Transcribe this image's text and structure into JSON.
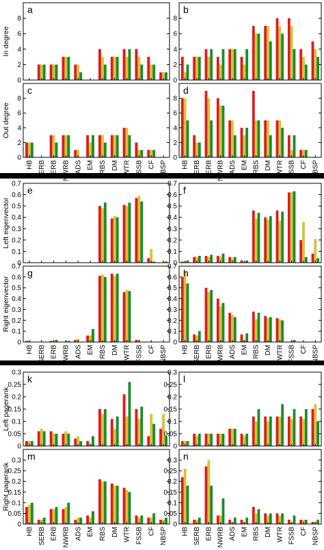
{
  "colors": {
    "series": [
      "#e01b1b",
      "#d4c43a",
      "#1e8a2c"
    ],
    "separator": "#000000"
  },
  "categories": [
    "HB",
    "SERB",
    "ERB",
    "NWRB",
    "ADS",
    "EM",
    "RBS",
    "DM",
    "WTR",
    "FSSB",
    "CF",
    "NBSP"
  ],
  "chart_data": [
    {
      "type": "bar",
      "panel": "a",
      "ylabel": "In degree",
      "ylim": [
        0,
        10
      ],
      "yticks": [
        0,
        2,
        4,
        6,
        8
      ],
      "series": [
        {
          "values": [
            0,
            2,
            2,
            3,
            2,
            0,
            4,
            3,
            4,
            4,
            3,
            1
          ]
        },
        {
          "values": [
            0,
            2,
            2,
            3,
            2,
            0,
            3,
            3,
            3,
            3,
            2,
            1
          ]
        },
        {
          "values": [
            0,
            2,
            2,
            3,
            1,
            0,
            2,
            3,
            4,
            2,
            2,
            1
          ]
        }
      ]
    },
    {
      "type": "bar",
      "panel": "b",
      "ylabel": "",
      "ylim": [
        0,
        10
      ],
      "yticks": [
        0,
        2,
        4,
        6,
        8
      ],
      "series": [
        {
          "values": [
            3,
            3,
            4,
            3,
            4,
            3,
            7,
            7,
            8,
            8,
            4,
            5
          ]
        },
        {
          "values": [
            1,
            3,
            3,
            2,
            4,
            2,
            6,
            7,
            7,
            7,
            3,
            4
          ]
        },
        {
          "values": [
            2,
            3,
            4,
            4,
            4,
            4,
            6,
            5,
            6,
            4,
            2,
            3
          ]
        }
      ]
    },
    {
      "type": "bar",
      "panel": "c",
      "ylabel": "Out degree",
      "ylim": [
        0,
        10
      ],
      "yticks": [
        0,
        2,
        4,
        6,
        8
      ],
      "series": [
        {
          "values": [
            2,
            0,
            3,
            3,
            1,
            3,
            3,
            3,
            4,
            2,
            1,
            0
          ]
        },
        {
          "values": [
            2,
            0,
            3,
            3,
            1,
            2,
            3,
            3,
            4,
            1,
            1,
            0
          ]
        },
        {
          "values": [
            2,
            0,
            2,
            3,
            0,
            3,
            2,
            3,
            3,
            1,
            1,
            0
          ]
        }
      ]
    },
    {
      "type": "bar",
      "panel": "d",
      "ylabel": "",
      "ylim": [
        0,
        10
      ],
      "yticks": [
        0,
        2,
        4,
        6,
        8
      ],
      "series": [
        {
          "values": [
            8,
            3,
            9,
            8,
            5,
            4,
            9,
            5,
            5,
            3,
            1,
            0
          ]
        },
        {
          "values": [
            8,
            2,
            8,
            7,
            5,
            3,
            5,
            5,
            5,
            1,
            1,
            0
          ]
        },
        {
          "values": [
            5,
            2,
            5,
            7,
            3,
            4,
            5,
            3,
            4,
            3,
            1,
            0
          ]
        }
      ]
    },
    {
      "type": "bar",
      "panel": "e",
      "ylabel": "Left eigenvector",
      "ylim": [
        0,
        0.7
      ],
      "yticks": [
        0,
        0.1,
        0.2,
        0.3,
        0.4,
        0.5,
        0.6,
        0.7
      ],
      "series": [
        {
          "values": [
            0,
            0,
            0,
            0,
            0,
            0,
            0.5,
            0.39,
            0.51,
            0.57,
            0.04,
            0
          ]
        },
        {
          "values": [
            0,
            0,
            0,
            0,
            0,
            0,
            0.48,
            0.41,
            0.5,
            0.59,
            0.12,
            0.01
          ]
        },
        {
          "values": [
            0,
            0,
            0,
            0,
            0,
            0,
            0.53,
            0.4,
            0.53,
            0.54,
            0.01,
            0.01
          ]
        }
      ]
    },
    {
      "type": "bar",
      "panel": "f",
      "ylabel": "",
      "ylim": [
        0,
        0.7
      ],
      "yticks": [
        0,
        0.1,
        0.2,
        0.3,
        0.4,
        0.5,
        0.6,
        0.7
      ],
      "series": [
        {
          "values": [
            0.01,
            0.05,
            0.06,
            0.06,
            0.05,
            0.02,
            0.46,
            0.4,
            0.46,
            0.62,
            0.2,
            0.08
          ]
        },
        {
          "values": [
            0.01,
            0.05,
            0.05,
            0.05,
            0.04,
            0.01,
            0.39,
            0.38,
            0.37,
            0.62,
            0.36,
            0.21
          ]
        },
        {
          "values": [
            0.02,
            0.06,
            0.07,
            0.08,
            0.05,
            0.02,
            0.44,
            0.41,
            0.45,
            0.63,
            0.05,
            0.04
          ]
        }
      ]
    },
    {
      "type": "bar",
      "panel": "g",
      "ylabel": "Right eigenvector",
      "ylim": [
        0,
        0.7
      ],
      "yticks": [
        0,
        0.1,
        0.2,
        0.3,
        0.4,
        0.5,
        0.6,
        0.7
      ],
      "series": [
        {
          "values": [
            0.01,
            0,
            0.01,
            0,
            0.02,
            0.06,
            0.61,
            0.63,
            0.46,
            0.02,
            0,
            0
          ]
        },
        {
          "values": [
            0.01,
            0,
            0.01,
            0.01,
            0.03,
            0.06,
            0.62,
            0.61,
            0.48,
            0.02,
            0,
            0
          ]
        },
        {
          "values": [
            0,
            0,
            0.02,
            0.01,
            0,
            0.12,
            0.6,
            0.63,
            0.47,
            0,
            0,
            0
          ]
        }
      ]
    },
    {
      "type": "bar",
      "panel": "h",
      "ylabel": "",
      "ylim": [
        0,
        0.7
      ],
      "yticks": [
        0,
        0.1,
        0.2,
        0.3,
        0.4,
        0.5,
        0.6,
        0.7
      ],
      "series": [
        {
          "values": [
            0.6,
            0.07,
            0.5,
            0.4,
            0.27,
            0.07,
            0.28,
            0.24,
            0.22,
            0,
            0,
            0
          ]
        },
        {
          "values": [
            0.65,
            0.06,
            0.46,
            0.33,
            0.25,
            0.02,
            0.21,
            0.22,
            0.21,
            0.01,
            0,
            0
          ]
        },
        {
          "values": [
            0.54,
            0.1,
            0.48,
            0.36,
            0.23,
            0.08,
            0.27,
            0.23,
            0.2,
            0.02,
            0,
            0
          ]
        }
      ]
    },
    {
      "type": "bar",
      "panel": "k",
      "ylabel": "Left pagerank",
      "ylim": [
        0,
        0.3
      ],
      "yticks": [
        0,
        0.05,
        0.1,
        0.15,
        0.2,
        0.25,
        0.3
      ],
      "series": [
        {
          "values": [
            0.02,
            0.06,
            0.06,
            0.05,
            0.03,
            0.02,
            0.15,
            0.11,
            0.21,
            0.15,
            0.04,
            0.07
          ]
        },
        {
          "values": [
            0.02,
            0.07,
            0.05,
            0.06,
            0.04,
            0.01,
            0.13,
            0.07,
            0.12,
            0.11,
            0.13,
            0.13
          ]
        },
        {
          "values": [
            0.02,
            0.06,
            0.05,
            0.05,
            0.02,
            0.04,
            0.15,
            0.12,
            0.26,
            0.16,
            0.09,
            0.04
          ]
        }
      ]
    },
    {
      "type": "bar",
      "panel": "l",
      "ylabel": "",
      "ylim": [
        0,
        0.3
      ],
      "yticks": [
        0,
        0.05,
        0.1,
        0.15,
        0.2,
        0.25,
        0.3
      ],
      "series": [
        {
          "values": [
            0.02,
            0.05,
            0.05,
            0.05,
            0.07,
            0.05,
            0.12,
            0.12,
            0.12,
            0.12,
            0.12,
            0.15
          ]
        },
        {
          "values": [
            0.02,
            0.04,
            0.05,
            0.05,
            0.07,
            0.04,
            0.1,
            0.1,
            0.12,
            0.11,
            0.11,
            0.17
          ]
        },
        {
          "values": [
            0.02,
            0.05,
            0.05,
            0.05,
            0.07,
            0.05,
            0.15,
            0.12,
            0.17,
            0.15,
            0.15,
            0.1
          ]
        }
      ]
    },
    {
      "type": "bar",
      "panel": "m",
      "ylabel": "Right pagerank",
      "ylim": [
        0,
        0.35
      ],
      "yticks": [
        0,
        0.05,
        0.1,
        0.15,
        0.2,
        0.25,
        0.3
      ],
      "series": [
        {
          "values": [
            0.08,
            0.02,
            0.07,
            0.07,
            0.02,
            0.04,
            0.21,
            0.19,
            0.17,
            0.04,
            0.03,
            0.02
          ]
        },
        {
          "values": [
            0.09,
            0.02,
            0.07,
            0.08,
            0.03,
            0.03,
            0.2,
            0.18,
            0.16,
            0.03,
            0.03,
            0.02
          ]
        },
        {
          "values": [
            0.1,
            0.03,
            0.08,
            0.1,
            0.03,
            0.06,
            0.2,
            0.18,
            0.15,
            0.04,
            0.05,
            0.03
          ]
        }
      ]
    },
    {
      "type": "bar",
      "panel": "n",
      "ylabel": "",
      "ylim": [
        0,
        0.35
      ],
      "yticks": [
        0,
        0.05,
        0.1,
        0.15,
        0.2,
        0.25,
        0.3
      ],
      "series": [
        {
          "values": [
            0.22,
            0.02,
            0.27,
            0.04,
            0.02,
            0.02,
            0.08,
            0.05,
            0.05,
            0.02,
            0.02,
            0.01
          ]
        },
        {
          "values": [
            0.26,
            0.02,
            0.3,
            0.04,
            0.01,
            0.01,
            0.05,
            0.04,
            0.04,
            0.01,
            0.02,
            0.01
          ]
        },
        {
          "values": [
            0.18,
            0.03,
            0.18,
            0.12,
            0.03,
            0.03,
            0.07,
            0.05,
            0.05,
            0.04,
            0.02,
            0.02
          ]
        }
      ]
    }
  ]
}
